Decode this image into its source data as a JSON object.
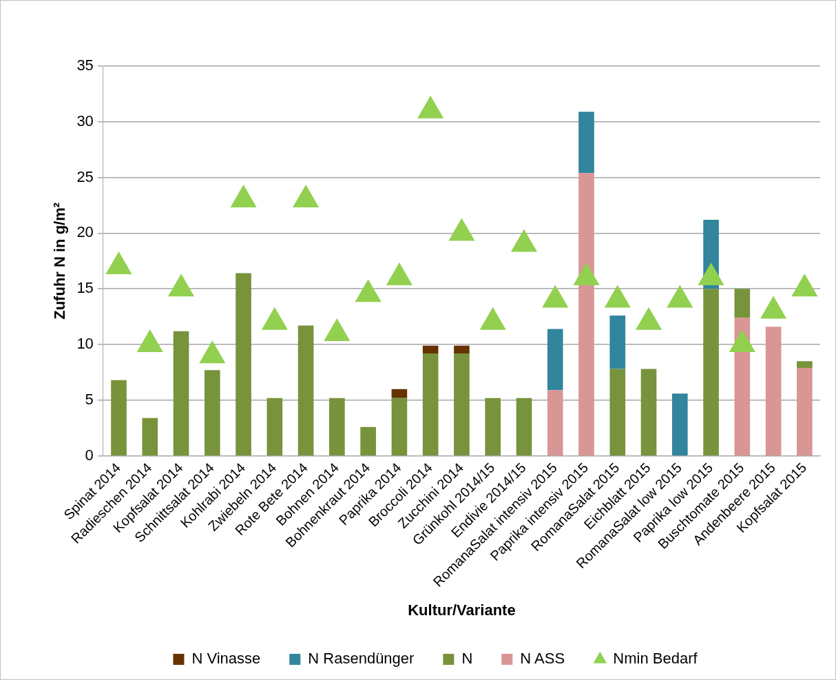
{
  "chart_data": {
    "type": "bar",
    "xlabel": "Kultur/Variante",
    "ylabel": "Zufuhr N in g/m²",
    "categories": [
      "Spinat 2014",
      "Radieschen 2014",
      "Kopfsalat 2014",
      "Schnittsalat 2014",
      "Kohlrabi 2014",
      "Zwiebeln 2014",
      "Rote Bete 2014",
      "Bohnen 2014",
      "Bohnenkraut 2014",
      "Paprika 2014",
      "Broccoli 2014",
      "Zucchini 2014",
      "Grünkohl 2014/15",
      "Endivie 2014/15",
      "RomanaSalat intensiv 2015",
      "Paprika intensiv 2015",
      "RomanaSalat 2015",
      "Eichblatt 2015",
      "RomanaSalat low 2015",
      "Paprika low 2015",
      "Buschtomate 2015",
      "Andenbeere 2015",
      "Kopfsalat 2015"
    ],
    "stacked": true,
    "ylim": [
      0,
      35
    ],
    "yticks": [
      0,
      5,
      10,
      15,
      20,
      25,
      30,
      35
    ],
    "grid": "y",
    "legend": "bottom",
    "marker": "triangle",
    "series": [
      {
        "name": "N ASS",
        "color": "#d99694",
        "values": [
          null,
          null,
          null,
          null,
          null,
          null,
          null,
          null,
          null,
          null,
          null,
          null,
          null,
          null,
          5.9,
          25.4,
          null,
          null,
          null,
          null,
          12.4,
          11.6,
          7.9
        ]
      },
      {
        "name": "N",
        "color": "#77933c",
        "values": [
          6.8,
          3.4,
          11.2,
          7.7,
          16.4,
          5.2,
          11.7,
          5.2,
          2.6,
          5.2,
          9.2,
          9.2,
          5.2,
          5.2,
          null,
          null,
          7.8,
          7.8,
          null,
          15,
          2.6,
          null,
          0.6
        ]
      },
      {
        "name": "N Rasendünger",
        "color": "#31859c",
        "values": [
          null,
          null,
          null,
          null,
          null,
          null,
          null,
          null,
          null,
          null,
          null,
          null,
          null,
          null,
          5.5,
          5.5,
          4.8,
          null,
          5.6,
          6.2,
          null,
          null,
          null
        ]
      },
      {
        "name": "N Vinasse",
        "color": "#663300",
        "values": [
          null,
          null,
          null,
          null,
          null,
          null,
          null,
          null,
          null,
          0.8,
          0.7,
          0.7,
          null,
          null,
          null,
          null,
          null,
          null,
          null,
          null,
          null,
          null,
          null
        ]
      },
      {
        "name": "Nmin Bedarf",
        "type": "scatter",
        "color": "#92d050",
        "values": [
          17,
          10,
          15,
          9,
          23,
          12,
          23,
          11,
          14.5,
          16,
          31,
          20,
          12,
          19,
          14,
          16,
          14,
          12,
          14,
          16,
          10,
          13,
          15
        ]
      }
    ]
  }
}
